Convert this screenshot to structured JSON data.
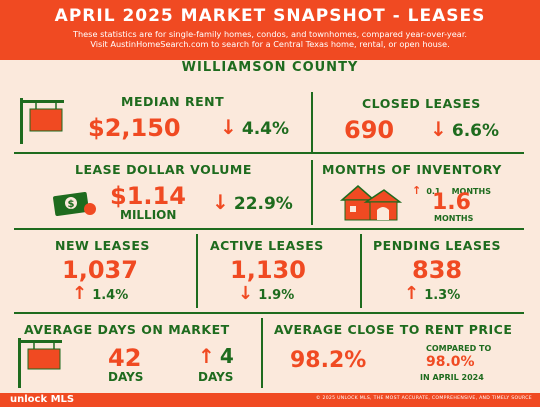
{
  "header": {
    "title": "APRIL 2025 MARKET SNAPSHOT - LEASES",
    "subtitle_line1": "These statistics are for single-family homes, condos, and townhomes, compared year-over-year.",
    "subtitle_line2": "Visit AustinHomeSearch.com to search for a Central Texas home, rental, or open house."
  },
  "county": "WILLIAMSON COUNTY",
  "stats": {
    "median_rent": {
      "label": "MEDIAN RENT",
      "value": "$2,150",
      "change": "4.4%"
    },
    "closed_leases": {
      "label": "CLOSED LEASES",
      "value": "690",
      "change": "6.6%"
    },
    "lease_dollar_volume": {
      "label": "LEASE DOLLAR VOLUME",
      "value": "$1.14",
      "unit": "MILLION",
      "change": "22.9%"
    },
    "months_of_inventory": {
      "label": "MONTHS OF INVENTORY",
      "change": "0.1",
      "change_unit": "MONTHS",
      "value": "1.6",
      "unit": "MONTHS"
    },
    "new_leases": {
      "label": "NEW LEASES",
      "value": "1,037",
      "change": "1.4%"
    },
    "active_leases": {
      "label": "ACTIVE LEASES",
      "value": "1,130",
      "change": "1.9%"
    },
    "pending_leases": {
      "label": "PENDING LEASES",
      "value": "838",
      "change": "1.3%"
    },
    "average_days_on_market": {
      "label": "AVERAGE DAYS ON MARKET",
      "value": "42",
      "unit": "DAYS",
      "change": "4",
      "change_unit": "DAYS"
    },
    "average_close_to_rent": {
      "label": "AVERAGE CLOSE TO RENT PRICE",
      "value": "98.2%",
      "compared_label": "COMPARED TO",
      "compared_value": "98.0%",
      "compared_period": "IN APRIL 2024"
    }
  },
  "footer": {
    "logo": "unlock MLS",
    "copyright": "© 2025 UNLOCK MLS, THE MOST ACCURATE, COMPREHENSIVE, AND TIMELY SOURCE"
  },
  "colors": {
    "accent": "#f04a22",
    "green": "#1e6b1e",
    "background": "#fbe9dc"
  },
  "icons": [
    "for-rent-sign-icon",
    "money-icon",
    "house-icon",
    "arrow-down-icon",
    "arrow-up-icon"
  ]
}
